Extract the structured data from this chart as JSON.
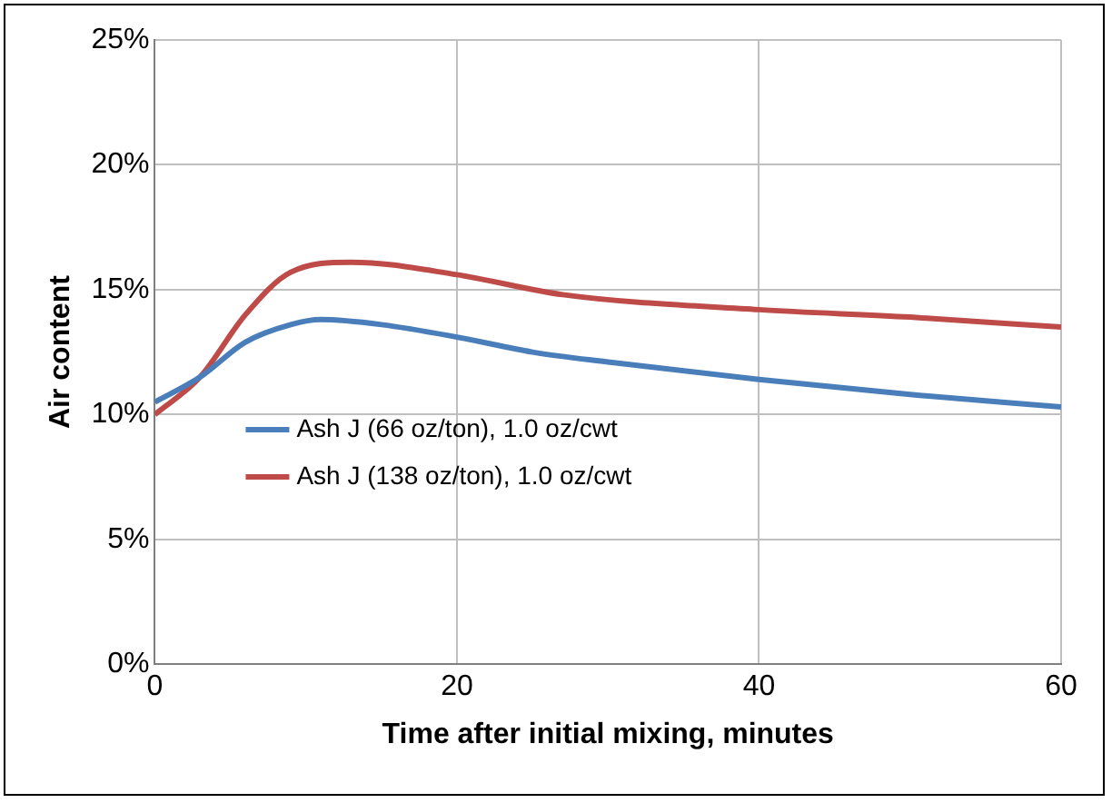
{
  "chart_data": {
    "type": "line",
    "xlabel": "Time after initial mixing, minutes",
    "ylabel": "Air content",
    "xlim": [
      0,
      60
    ],
    "xticks": [
      0,
      20,
      40,
      60
    ],
    "ylim": [
      0,
      25
    ],
    "yticks": [
      {
        "value": 0,
        "label": "0%"
      },
      {
        "value": 5,
        "label": "5%"
      },
      {
        "value": 10,
        "label": "10%"
      },
      {
        "value": 15,
        "label": "15%"
      },
      {
        "value": 20,
        "label": "20%"
      },
      {
        "value": 25,
        "label": "25%"
      }
    ],
    "grid": true,
    "legend": "left",
    "marker": "none",
    "line_style": "solid",
    "series": [
      {
        "name": "Ash J (66 oz/ton), 1.0 oz/cwt",
        "color": "#4a7ebb",
        "x": [
          0,
          3,
          6,
          9,
          11,
          15,
          20,
          25,
          30,
          40,
          50,
          60
        ],
        "values": [
          10.5,
          11.5,
          12.9,
          13.6,
          13.8,
          13.6,
          13.1,
          12.5,
          12.1,
          11.4,
          10.8,
          10.3
        ]
      },
      {
        "name": "Ash J (138 oz/ton), 1.0 oz/cwt",
        "color": "#be4b48",
        "x": [
          0,
          3,
          6,
          9,
          13,
          20,
          27,
          40,
          50,
          60
        ],
        "values": [
          10.0,
          11.5,
          14.0,
          15.7,
          16.1,
          15.6,
          14.8,
          14.2,
          13.9,
          13.5
        ]
      }
    ]
  }
}
